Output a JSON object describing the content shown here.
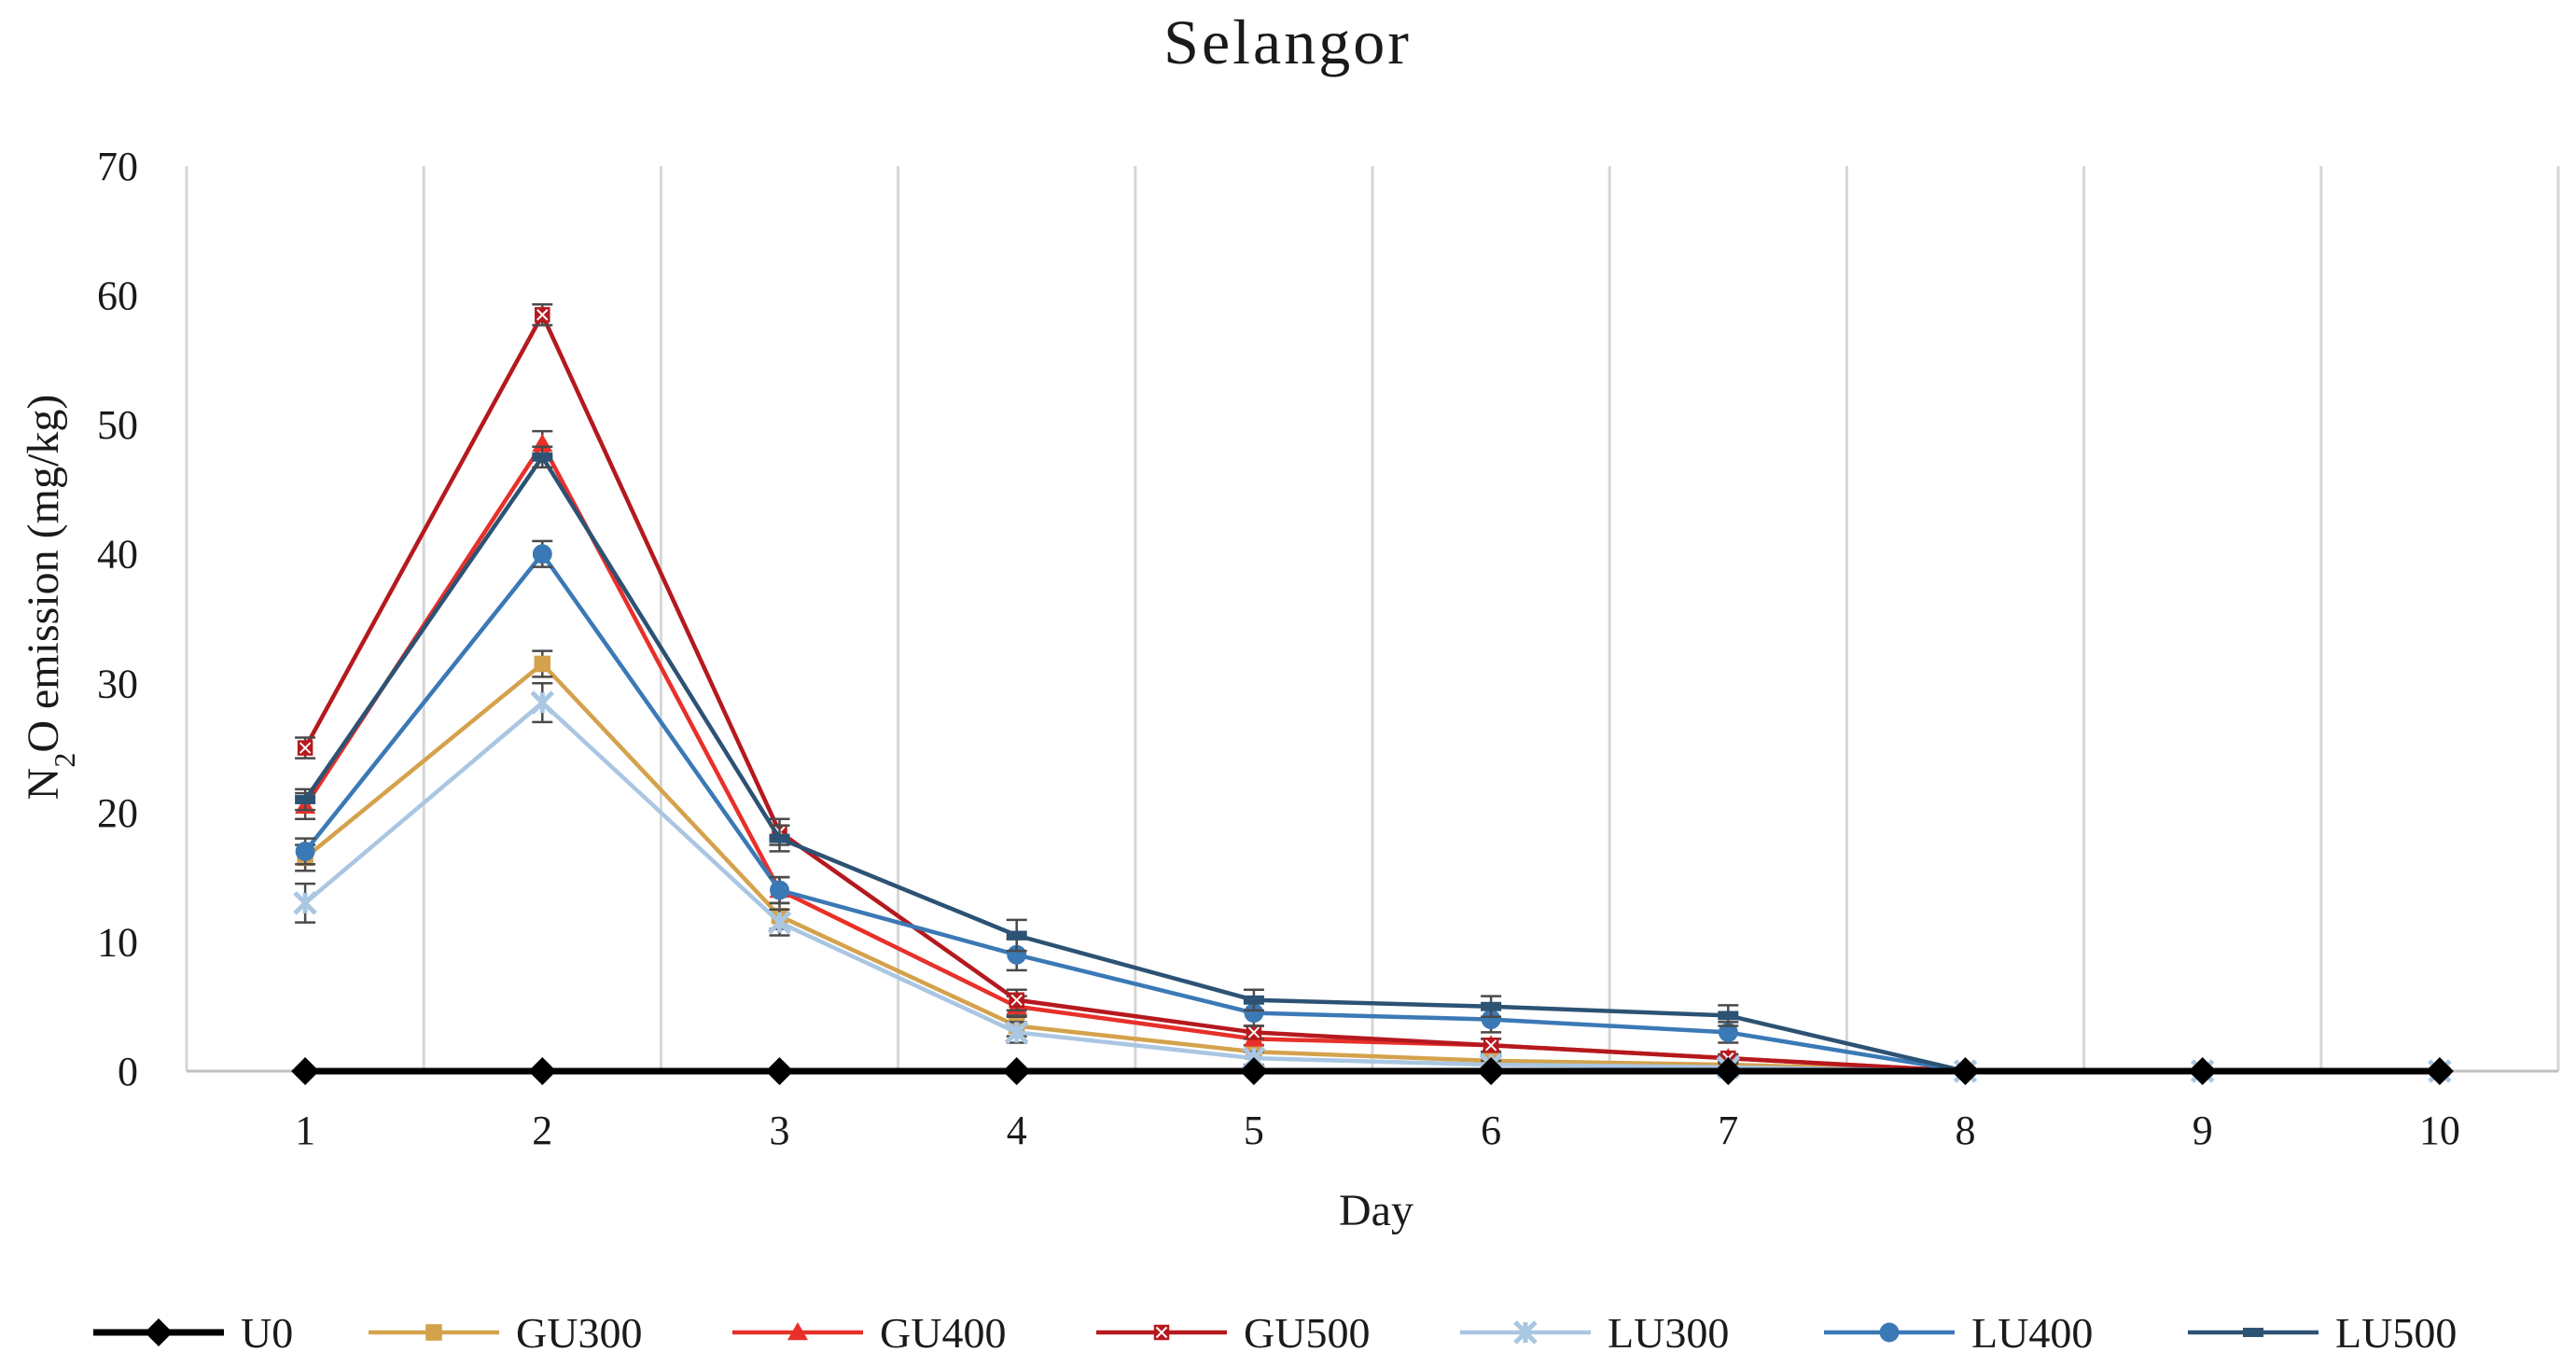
{
  "chart_data": {
    "type": "line",
    "title": "Selangor",
    "xlabel": "Day",
    "ylabel_parts": [
      "N",
      "2",
      "O emission (mg/kg)"
    ],
    "x": [
      1,
      2,
      3,
      4,
      5,
      6,
      7,
      8,
      9,
      10
    ],
    "ylim": [
      0,
      70
    ],
    "yticks": [
      0,
      10,
      20,
      30,
      40,
      50,
      60,
      70
    ],
    "grid": "vertical",
    "legend_position": "bottom",
    "series": [
      {
        "name": "U0",
        "color": "#000000",
        "marker": "diamond",
        "values": [
          0,
          0,
          0,
          0,
          0,
          0,
          0,
          0,
          0,
          0
        ],
        "errors": [
          0,
          0,
          0,
          0,
          0,
          0,
          0,
          0,
          0,
          0
        ]
      },
      {
        "name": "GU300",
        "color": "#D4A24C",
        "marker": "square",
        "values": [
          16.5,
          31.5,
          12,
          3.5,
          1.5,
          0.8,
          0.5,
          0,
          0,
          0
        ],
        "errors": [
          1.0,
          1.0,
          1.0,
          0.8,
          0.5,
          0.5,
          0.3,
          0,
          0,
          0
        ]
      },
      {
        "name": "GU400",
        "color": "#E8302A",
        "marker": "triangle",
        "values": [
          20.5,
          48.5,
          14,
          5,
          2.5,
          2,
          1,
          0,
          0,
          0
        ],
        "errors": [
          1.0,
          1.0,
          1.0,
          0.8,
          0.5,
          0.5,
          0.3,
          0,
          0,
          0
        ]
      },
      {
        "name": "GU500",
        "color": "#B5191E",
        "marker": "square-x",
        "values": [
          25,
          58.5,
          18.5,
          5.5,
          3,
          2,
          1,
          0,
          0,
          0
        ],
        "errors": [
          0.8,
          0.8,
          1.0,
          0.8,
          0.5,
          0.5,
          0.3,
          0,
          0,
          0
        ]
      },
      {
        "name": "LU300",
        "color": "#A9C6E2",
        "marker": "star",
        "values": [
          13,
          28.5,
          11.5,
          3,
          1,
          0.5,
          0.3,
          0,
          0,
          0
        ],
        "errors": [
          1.5,
          1.5,
          1.0,
          0.8,
          0.5,
          0.3,
          0.3,
          0,
          0,
          0
        ]
      },
      {
        "name": "LU400",
        "color": "#3B79B6",
        "marker": "circle",
        "values": [
          17,
          40,
          14,
          9,
          4.5,
          4,
          3,
          0,
          0,
          0
        ],
        "errors": [
          1.0,
          1.0,
          1.0,
          1.2,
          1.0,
          1.0,
          0.8,
          0,
          0,
          0
        ]
      },
      {
        "name": "LU500",
        "color": "#2C5274",
        "marker": "bar",
        "values": [
          21,
          47.5,
          18,
          10.5,
          5.5,
          5,
          4.3,
          0,
          0,
          0
        ],
        "errors": [
          0.8,
          0.8,
          1.0,
          1.2,
          0.8,
          0.8,
          0.8,
          0,
          0,
          0
        ]
      }
    ]
  }
}
